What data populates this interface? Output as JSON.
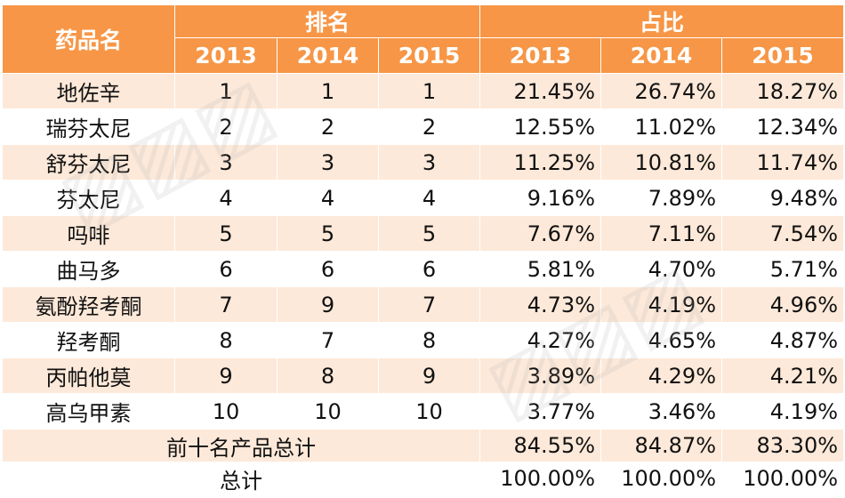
{
  "header": {
    "drug_name": "药品名",
    "rank_group": "排名",
    "share_group": "占比",
    "years": [
      "2013",
      "2014",
      "2015"
    ]
  },
  "rows": [
    {
      "name": "地佐辛",
      "rank": [
        "1",
        "1",
        "1"
      ],
      "share": [
        "21.45%",
        "26.74%",
        "18.27%"
      ]
    },
    {
      "name": "瑞芬太尼",
      "rank": [
        "2",
        "2",
        "2"
      ],
      "share": [
        "12.55%",
        "11.02%",
        "12.34%"
      ]
    },
    {
      "name": "舒芬太尼",
      "rank": [
        "3",
        "3",
        "3"
      ],
      "share": [
        "11.25%",
        "10.81%",
        "11.74%"
      ]
    },
    {
      "name": "芬太尼",
      "rank": [
        "4",
        "4",
        "4"
      ],
      "share": [
        "9.16%",
        "7.89%",
        "9.48%"
      ]
    },
    {
      "name": "吗啡",
      "rank": [
        "5",
        "5",
        "5"
      ],
      "share": [
        "7.67%",
        "7.11%",
        "7.54%"
      ]
    },
    {
      "name": "曲马多",
      "rank": [
        "6",
        "6",
        "6"
      ],
      "share": [
        "5.81%",
        "4.70%",
        "5.71%"
      ]
    },
    {
      "name": "氨酚羟考酮",
      "rank": [
        "7",
        "9",
        "7"
      ],
      "share": [
        "4.73%",
        "4.19%",
        "4.96%"
      ]
    },
    {
      "name": "羟考酮",
      "rank": [
        "8",
        "7",
        "8"
      ],
      "share": [
        "4.27%",
        "4.65%",
        "4.87%"
      ]
    },
    {
      "name": "丙帕他莫",
      "rank": [
        "9",
        "8",
        "9"
      ],
      "share": [
        "3.89%",
        "4.29%",
        "4.21%"
      ]
    },
    {
      "name": "高乌甲素",
      "rank": [
        "10",
        "10",
        "10"
      ],
      "share": [
        "3.77%",
        "3.46%",
        "4.19%"
      ]
    }
  ],
  "subtotal": {
    "label": "前十名产品总计",
    "share": [
      "84.55%",
      "84.87%",
      "83.30%"
    ]
  },
  "total": {
    "label": "总计",
    "share": [
      "100.00%",
      "100.00%",
      "100.00%"
    ]
  },
  "colors": {
    "header": "#f79646",
    "band": "#fde9d9"
  }
}
